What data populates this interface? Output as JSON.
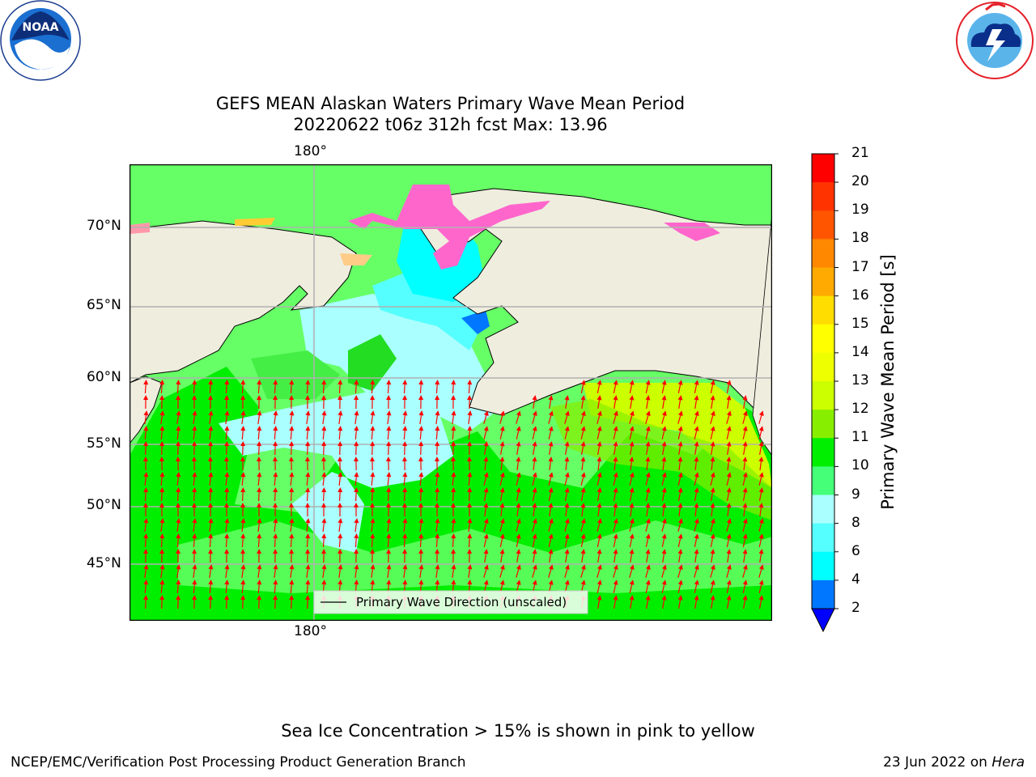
{
  "logos": {
    "noaa_text": "NOAA",
    "noaa_ring_text": "NATIONAL OCEANIC AND ATMOSPHERIC ADMINISTRATION",
    "noaa_ring_bottom": "U.S. DEPARTMENT OF COMMERCE",
    "nws_ring_text": "NATIONAL WEATHER SERVICE"
  },
  "title": {
    "line1": "GEFS MEAN Alaskan Waters Primary Wave Mean Period",
    "line2": "20220622 t06z 312h fcst   Max: 13.96"
  },
  "map": {
    "lon_top_label": "180°",
    "lon_bottom_label": "180°",
    "lat_labels": [
      "70°N",
      "65°N",
      "60°N",
      "55°N",
      "50°N",
      "45°N"
    ],
    "legend_label": "Primary Wave Direction (unscaled)",
    "colors": {
      "land": "#efedde",
      "ocean_green": "#00ee00",
      "ocean_lightgreen": "#66ff66",
      "ocean_yellowgreen": "#ccff00",
      "ocean_cyan": "#55ffff",
      "ocean_paleblue": "#aaffff",
      "ice_pink": "#ff66cc",
      "ice_yellow": "#ffcc33",
      "arrow": "#ff0000",
      "grid": "#b0b0b0"
    }
  },
  "colorbar": {
    "label": "Primary Wave Mean Period [s]",
    "ticks": [
      "21",
      "20",
      "19",
      "18",
      "17",
      "16",
      "15",
      "14",
      "13",
      "12",
      "11",
      "10",
      "9",
      "8",
      "6",
      "4",
      "2"
    ],
    "colors": [
      "#ff0000",
      "#ff3300",
      "#ff5500",
      "#ff8800",
      "#ffaa00",
      "#ffdd00",
      "#ffff00",
      "#eeff00",
      "#ccff00",
      "#88ee00",
      "#00ee00",
      "#44ff77",
      "#aaffff",
      "#55ffff",
      "#00ffff",
      "#0077ff"
    ],
    "extend_color": "#0000ff"
  },
  "note": "Sea Ice Concentration > 15% is shown in pink to yellow",
  "footer": {
    "left": "NCEP/EMC/Verification Post Processing Product Generation Branch",
    "right_prefix": "23 Jun 2022 on ",
    "right_machine": "Hera"
  }
}
